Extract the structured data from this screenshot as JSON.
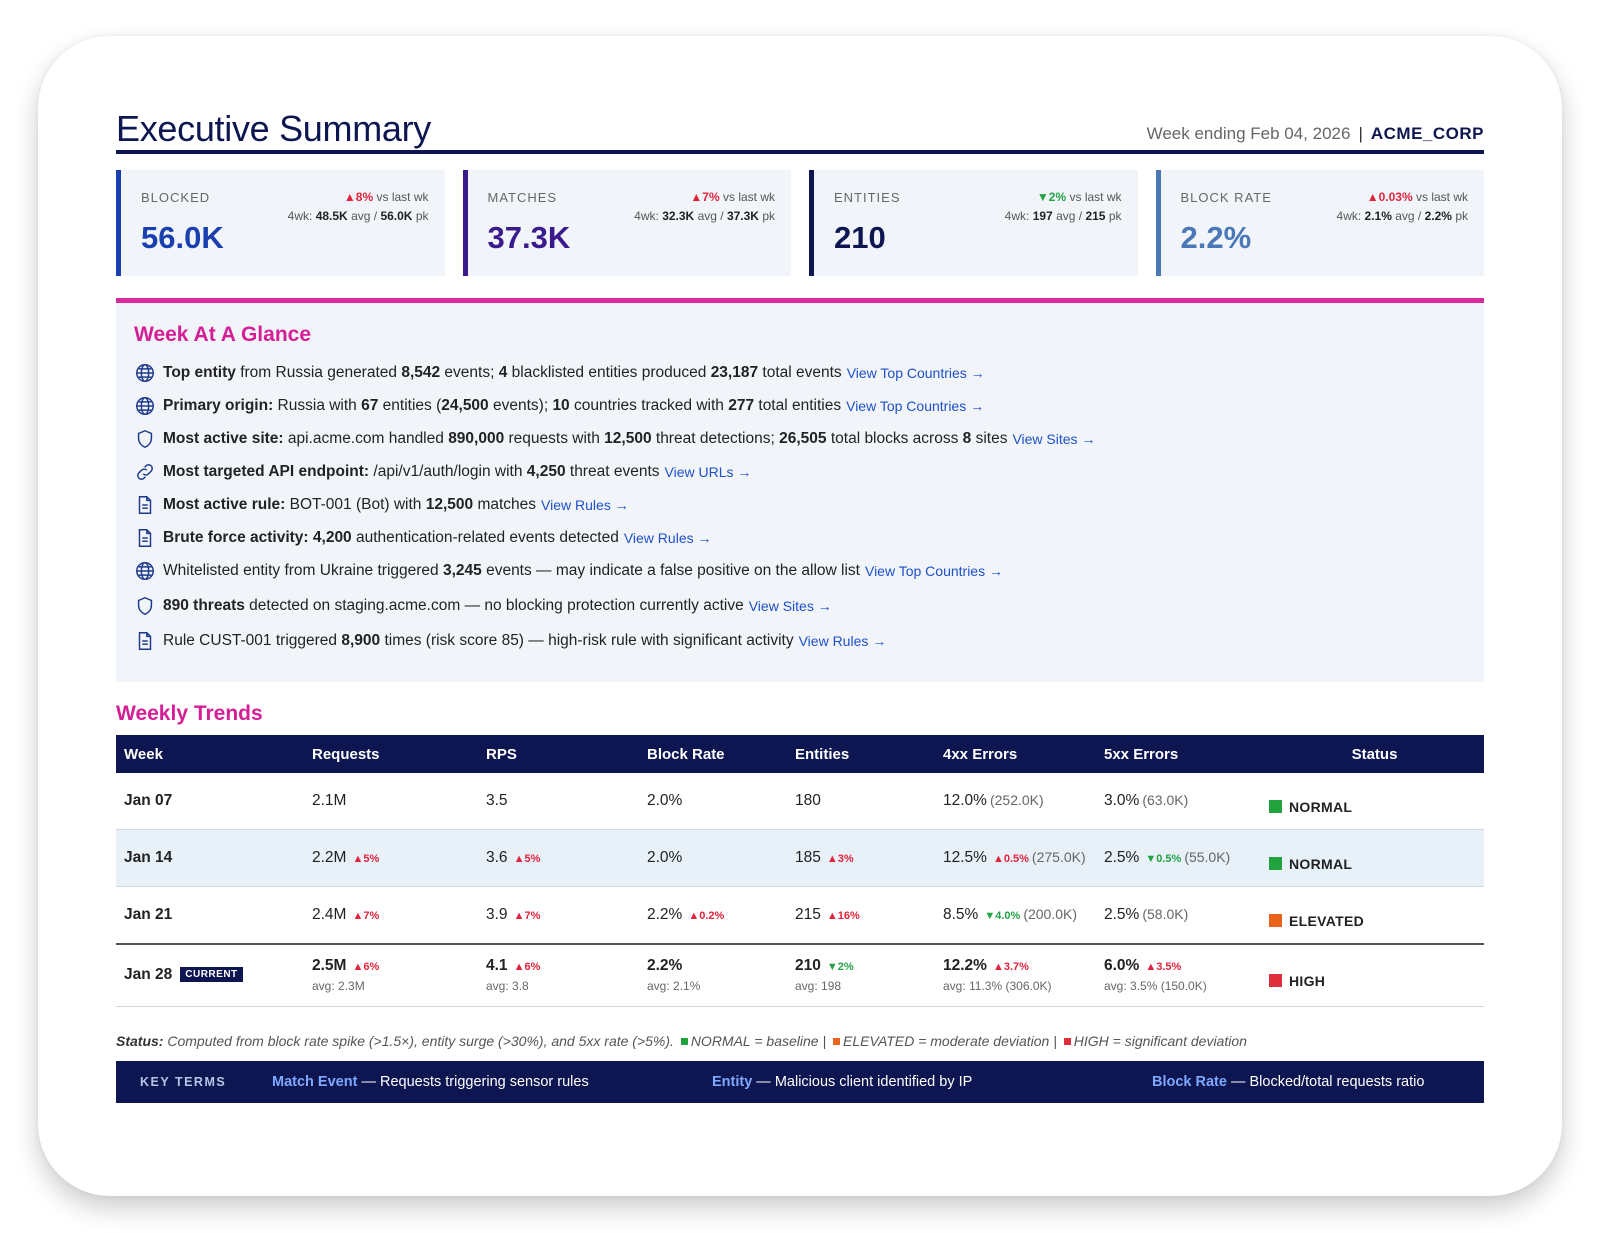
{
  "header": {
    "title": "Executive Summary",
    "week_ending": "Week ending Feb 04, 2026",
    "separator": "|",
    "org": "ACME_CORP"
  },
  "kpis": [
    {
      "label": "BLOCKED",
      "value": "56.0K",
      "delta_arrow": "▲",
      "delta": "8%",
      "delta_suffix": "vs last wk",
      "fourwk_prefix": "4wk:",
      "avg": "48.5K",
      "avg_suffix": "avg /",
      "peak": "56.0K",
      "peak_suffix": "pk",
      "accent": "#1a40b0",
      "direction": "up"
    },
    {
      "label": "MATCHES",
      "value": "37.3K",
      "delta_arrow": "▲",
      "delta": "7%",
      "delta_suffix": "vs last wk",
      "fourwk_prefix": "4wk:",
      "avg": "32.3K",
      "avg_suffix": "avg /",
      "peak": "37.3K",
      "peak_suffix": "pk",
      "accent": "#3a1a8c",
      "direction": "up"
    },
    {
      "label": "ENTITIES",
      "value": "210",
      "delta_arrow": "▼",
      "delta": "2%",
      "delta_suffix": "vs last wk",
      "fourwk_prefix": "4wk:",
      "avg": "197",
      "avg_suffix": "avg /",
      "peak": "215",
      "peak_suffix": "pk",
      "accent": "#0d1650",
      "direction": "down"
    },
    {
      "label": "BLOCK RATE",
      "value": "2.2%",
      "delta_arrow": "▲",
      "delta": "0.03%",
      "delta_suffix": "vs last wk",
      "fourwk_prefix": "4wk:",
      "avg": "2.1%",
      "avg_suffix": "avg /",
      "peak": "2.2%",
      "peak_suffix": "pk",
      "accent": "#4a78b6",
      "direction": "up"
    }
  ],
  "glance": {
    "title": "Week At A Glance",
    "items": [
      {
        "icon": "globe-icon",
        "parts": [
          [
            "b",
            "Top entity"
          ],
          [
            "t",
            " from Russia generated "
          ],
          [
            "b",
            "8,542"
          ],
          [
            "t",
            " events; "
          ],
          [
            "b",
            "4"
          ],
          [
            "t",
            " blacklisted entities produced "
          ],
          [
            "b",
            "23,187"
          ],
          [
            "t",
            " total events"
          ]
        ],
        "link": "View Top Countries →"
      },
      {
        "icon": "globe-icon",
        "parts": [
          [
            "b",
            "Primary origin:"
          ],
          [
            "t",
            " Russia with "
          ],
          [
            "b",
            "67"
          ],
          [
            "t",
            " entities ("
          ],
          [
            "b",
            "24,500"
          ],
          [
            "t",
            " events); "
          ],
          [
            "b",
            "10"
          ],
          [
            "t",
            " countries tracked with "
          ],
          [
            "b",
            "277"
          ],
          [
            "t",
            " total entities"
          ]
        ],
        "link": "View Top Countries →"
      },
      {
        "icon": "shield-icon",
        "parts": [
          [
            "b",
            "Most active site:"
          ],
          [
            "t",
            " api.acme.com handled "
          ],
          [
            "b",
            "890,000"
          ],
          [
            "t",
            " requests with "
          ],
          [
            "b",
            "12,500"
          ],
          [
            "t",
            " threat detections; "
          ],
          [
            "b",
            "26,505"
          ],
          [
            "t",
            " total blocks across "
          ],
          [
            "b",
            "8"
          ],
          [
            "t",
            " sites"
          ]
        ],
        "link": "View Sites →"
      },
      {
        "icon": "link-icon",
        "parts": [
          [
            "b",
            "Most targeted API endpoint:"
          ],
          [
            "t",
            " /api/v1/auth/login with "
          ],
          [
            "b",
            "4,250"
          ],
          [
            "t",
            " threat events"
          ]
        ],
        "link": "View URLs →"
      },
      {
        "icon": "document-icon",
        "parts": [
          [
            "b",
            "Most active rule:"
          ],
          [
            "t",
            " BOT-001 (Bot) with "
          ],
          [
            "b",
            "12,500"
          ],
          [
            "t",
            " matches"
          ]
        ],
        "link": "View Rules →"
      },
      {
        "icon": "document-icon",
        "parts": [
          [
            "b",
            "Brute force activity:"
          ],
          [
            "t",
            " "
          ],
          [
            "b",
            "4,200"
          ],
          [
            "t",
            " authentication-related events detected"
          ]
        ],
        "link": "View Rules →"
      },
      {
        "icon": "globe-icon",
        "parts": [
          [
            "t",
            "Whitelisted entity from Ukraine triggered "
          ],
          [
            "b",
            "3,245"
          ],
          [
            "t",
            " events — may indicate a false positive on the allow list"
          ]
        ],
        "link": "View Top Countries →"
      },
      {
        "icon": "shield-icon",
        "parts": [
          [
            "b",
            "890 threats"
          ],
          [
            "t",
            " detected on staging.acme.com — no blocking protection currently active"
          ]
        ],
        "link": "View Sites →"
      },
      {
        "icon": "document-icon",
        "parts": [
          [
            "t",
            "Rule CUST-001 triggered "
          ],
          [
            "b",
            "8,900"
          ],
          [
            "t",
            " times (risk score 85) — high-risk rule with significant activity"
          ]
        ],
        "link": "View Rules →"
      }
    ]
  },
  "trends": {
    "title": "Weekly Trends",
    "columns": [
      "Week",
      "Requests",
      "RPS",
      "Block Rate",
      "Entities",
      "4xx Errors",
      "5xx Errors",
      "Status"
    ],
    "rows": [
      {
        "week": "Jan 07",
        "requests": "2.1M",
        "rps": "3.5",
        "block_rate": "2.0%",
        "entities": "180",
        "e4xx": "12.0%",
        "e4xx_n": "(252.0K)",
        "e5xx": "3.0%",
        "e5xx_n": "(63.0K)",
        "status": "NORMAL",
        "status_color": "#22a33d"
      },
      {
        "week": "Jan 14",
        "requests": "2.2M",
        "requests_chg": "▲5%",
        "rps": "3.6",
        "rps_chg": "▲5%",
        "block_rate": "2.0%",
        "entities": "185",
        "entities_chg": "▲3%",
        "e4xx": "12.5%",
        "e4xx_chg": "▲0.5%",
        "e4xx_n": "(275.0K)",
        "e5xx": "2.5%",
        "e5xx_chg": "▼0.5%",
        "e5xx_n": "(55.0K)",
        "status": "NORMAL",
        "status_color": "#22a33d"
      },
      {
        "week": "Jan 21",
        "requests": "2.4M",
        "requests_chg": "▲7%",
        "rps": "3.9",
        "rps_chg": "▲7%",
        "block_rate": "2.2%",
        "block_rate_chg": "▲0.2%",
        "entities": "215",
        "entities_chg": "▲16%",
        "e4xx": "8.5%",
        "e4xx_chg": "▼4.0%",
        "e4xx_n": "(200.0K)",
        "e5xx": "2.5%",
        "e5xx_n": "(58.0K)",
        "status": "ELEVATED",
        "status_color": "#e8641b"
      },
      {
        "week": "Jan 28",
        "badge": "CURRENT",
        "requests": "2.5M",
        "requests_chg": "▲6%",
        "requests_avg": "avg: 2.3M",
        "rps": "4.1",
        "rps_chg": "▲6%",
        "rps_avg": "avg: 3.8",
        "block_rate": "2.2%",
        "block_rate_avg": "avg: 2.1%",
        "entities": "210",
        "entities_chg": "▼2%",
        "entities_avg": "avg: 198",
        "e4xx": "12.2%",
        "e4xx_chg": "▲3.7%",
        "e4xx_avg": "avg: 11.3% (306.0K)",
        "e5xx": "6.0%",
        "e5xx_chg": "▲3.5%",
        "e5xx_avg": "avg: 3.5% (150.0K)",
        "status": "HIGH",
        "status_color": "#e02d3c"
      }
    ]
  },
  "legend": {
    "label": "Status:",
    "text": "Computed from block rate spike (>1.5×), entity surge (>30%), and 5xx rate (>5%).",
    "normal": "NORMAL = baseline |",
    "elevated": "ELEVATED = moderate deviation |",
    "high": "HIGH = significant deviation"
  },
  "key_terms": {
    "label": "KEY TERMS",
    "terms": [
      {
        "term": "Match Event",
        "desc": " — Requests triggering sensor rules"
      },
      {
        "term": "Entity",
        "desc": " — Malicious client identified by IP"
      },
      {
        "term": "Block Rate",
        "desc": " — Blocked/total requests ratio"
      }
    ]
  },
  "colors": {
    "navy": "#0d1650",
    "magenta": "#d51d95",
    "up": "#e2233b",
    "down": "#21a346",
    "link": "#1f50c8"
  }
}
